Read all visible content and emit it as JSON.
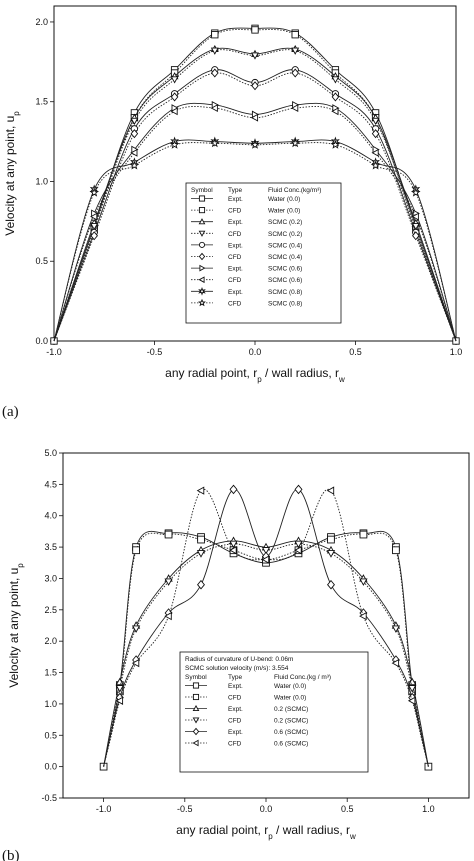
{
  "panels": [
    {
      "label": "(a)"
    },
    {
      "label": "(b)"
    }
  ],
  "chart_data": [
    {
      "type": "line",
      "xlabel": "any radial point, r_p / wall radius, r_w",
      "ylabel": "Velocity at any point, u_p",
      "xlim": [
        -1.0,
        1.0
      ],
      "ylim": [
        0.0,
        2.1
      ],
      "xticks": [
        "-1.0",
        "-0.5",
        "0.0",
        "0.5",
        "1.0"
      ],
      "yticks": [
        "0.0",
        "0.5",
        "1.0",
        "1.5",
        "2.0"
      ],
      "legend_position": "center",
      "legend": {
        "note": "",
        "headers": [
          "Symbol",
          "Type",
          "Fluid Conc.(kg/m³)"
        ],
        "rows": [
          {
            "marker": "square",
            "line": "solid",
            "type": "Expt.",
            "conc": "Water (0.0)"
          },
          {
            "marker": "square",
            "line": "dotted",
            "type": "CFD",
            "conc": "Water (0.0)"
          },
          {
            "marker": "triangle-up",
            "line": "solid",
            "type": "Expt.",
            "conc": "SCMC (0.2)"
          },
          {
            "marker": "triangle-down",
            "line": "dotted",
            "type": "CFD",
            "conc": "SCMC (0.2)"
          },
          {
            "marker": "circle",
            "line": "solid",
            "type": "Expt.",
            "conc": "SCMC (0.4)"
          },
          {
            "marker": "diamond",
            "line": "dotted",
            "type": "CFD",
            "conc": "SCMC (0.4)"
          },
          {
            "marker": "triangle-right",
            "line": "solid",
            "type": "Expt.",
            "conc": "SCMC (0.6)"
          },
          {
            "marker": "triangle-left",
            "line": "dotted",
            "type": "CFD",
            "conc": "SCMC (0.6)"
          },
          {
            "marker": "star6",
            "line": "solid",
            "type": "Expt.",
            "conc": "SCMC (0.8)"
          },
          {
            "marker": "star5",
            "line": "dotted",
            "type": "CFD",
            "conc": "SCMC (0.8)"
          }
        ]
      },
      "x": [
        -1.0,
        -0.8,
        -0.6,
        -0.4,
        -0.2,
        0.0,
        0.2,
        0.4,
        0.6,
        0.8,
        1.0
      ],
      "series": [
        {
          "marker": "square",
          "line": "solid",
          "values": [
            0.0,
            0.72,
            1.43,
            1.7,
            1.93,
            1.96,
            1.93,
            1.7,
            1.43,
            0.72,
            0.0
          ]
        },
        {
          "marker": "square",
          "line": "dotted",
          "values": [
            0.0,
            0.7,
            1.4,
            1.68,
            1.92,
            1.95,
            1.92,
            1.68,
            1.4,
            0.7,
            0.0
          ]
        },
        {
          "marker": "triangle-up",
          "line": "solid",
          "values": [
            0.0,
            0.74,
            1.4,
            1.66,
            1.83,
            1.8,
            1.83,
            1.66,
            1.4,
            0.74,
            0.0
          ]
        },
        {
          "marker": "triangle-down",
          "line": "dotted",
          "values": [
            0.0,
            0.72,
            1.38,
            1.64,
            1.82,
            1.79,
            1.82,
            1.64,
            1.38,
            0.72,
            0.0
          ]
        },
        {
          "marker": "circle",
          "line": "solid",
          "values": [
            0.0,
            0.68,
            1.33,
            1.55,
            1.7,
            1.62,
            1.7,
            1.55,
            1.33,
            0.68,
            0.0
          ]
        },
        {
          "marker": "diamond",
          "line": "dotted",
          "values": [
            0.0,
            0.66,
            1.3,
            1.53,
            1.68,
            1.6,
            1.68,
            1.53,
            1.3,
            0.66,
            0.0
          ]
        },
        {
          "marker": "triangle-right",
          "line": "solid",
          "values": [
            0.0,
            0.8,
            1.2,
            1.46,
            1.48,
            1.42,
            1.48,
            1.46,
            1.2,
            0.8,
            0.0
          ]
        },
        {
          "marker": "triangle-left",
          "line": "dotted",
          "values": [
            0.0,
            0.78,
            1.18,
            1.44,
            1.46,
            1.4,
            1.46,
            1.44,
            1.18,
            0.78,
            0.0
          ]
        },
        {
          "marker": "star6",
          "line": "solid",
          "values": [
            0.0,
            0.95,
            1.12,
            1.25,
            1.25,
            1.24,
            1.25,
            1.25,
            1.12,
            0.95,
            0.0
          ]
        },
        {
          "marker": "star5",
          "line": "dotted",
          "values": [
            0.0,
            0.93,
            1.1,
            1.23,
            1.24,
            1.23,
            1.24,
            1.23,
            1.1,
            0.93,
            0.0
          ]
        }
      ]
    },
    {
      "type": "line",
      "xlabel": "any radial point, r_p / wall radius, r_w",
      "ylabel": "Velocity at any point, u_p",
      "xlim": [
        -1.25,
        1.25
      ],
      "ylim": [
        -0.5,
        5.0
      ],
      "xticks": [
        "-1.0",
        "-0.5",
        "0.0",
        "0.5",
        "1.0"
      ],
      "yticks": [
        "-0.5",
        "0.0",
        "0.5",
        "1.0",
        "1.5",
        "2.0",
        "2.5",
        "3.0",
        "3.5",
        "4.0",
        "4.5",
        "5.0"
      ],
      "legend_position": "lower-right",
      "legend": {
        "note": "Radius of curvature of U-bend: 0.06m\nSCMC solution velocity (m/s): 3.554",
        "headers": [
          "Symbol",
          "Type",
          "Fluid Conc.(kg / m³)"
        ],
        "rows": [
          {
            "marker": "square",
            "line": "solid",
            "type": "Expt.",
            "conc": "Water (0.0)"
          },
          {
            "marker": "square",
            "line": "dotted",
            "type": "CFD",
            "conc": "Water (0.0)"
          },
          {
            "marker": "triangle-up",
            "line": "solid",
            "type": "Expt.",
            "conc": "0.2 (SCMC)"
          },
          {
            "marker": "triangle-down",
            "line": "dotted",
            "type": "CFD",
            "conc": "0.2 (SCMC)"
          },
          {
            "marker": "diamond",
            "line": "solid",
            "type": "Expt.",
            "conc": "0.6 (SCMC)"
          },
          {
            "marker": "triangle-left",
            "line": "dotted",
            "type": "CFD",
            "conc": "0.6 (SCMC)"
          }
        ]
      },
      "x": [
        -1.0,
        -0.9,
        -0.8,
        -0.6,
        -0.4,
        -0.2,
        0.0,
        0.2,
        0.4,
        0.6,
        0.8,
        0.9,
        1.0
      ],
      "series": [
        {
          "marker": "square",
          "line": "solid",
          "values": [
            0.0,
            1.3,
            3.5,
            3.72,
            3.66,
            3.4,
            3.25,
            3.4,
            3.66,
            3.72,
            3.5,
            1.3,
            0.0
          ]
        },
        {
          "marker": "square",
          "line": "dotted",
          "values": [
            0.0,
            1.2,
            3.45,
            3.7,
            3.62,
            3.45,
            3.3,
            3.45,
            3.62,
            3.7,
            3.45,
            1.2,
            0.0
          ]
        },
        {
          "marker": "triangle-up",
          "line": "solid",
          "values": [
            0.0,
            1.35,
            2.25,
            3.0,
            3.45,
            3.6,
            3.5,
            3.6,
            3.45,
            3.0,
            2.25,
            1.35,
            0.0
          ]
        },
        {
          "marker": "triangle-down",
          "line": "dotted",
          "values": [
            0.0,
            1.25,
            2.2,
            2.95,
            3.4,
            3.55,
            3.45,
            3.55,
            3.4,
            2.95,
            2.2,
            1.25,
            0.0
          ]
        },
        {
          "marker": "diamond",
          "line": "solid",
          "values": [
            0.0,
            1.1,
            1.7,
            2.45,
            2.9,
            4.42,
            3.35,
            4.42,
            2.9,
            2.45,
            1.7,
            1.1,
            0.0
          ]
        },
        {
          "marker": "triangle-left",
          "line": "dotted",
          "values": [
            0.0,
            1.05,
            1.65,
            2.4,
            4.4,
            3.45,
            3.3,
            3.45,
            4.4,
            2.4,
            1.65,
            1.05,
            0.0
          ]
        }
      ]
    }
  ]
}
